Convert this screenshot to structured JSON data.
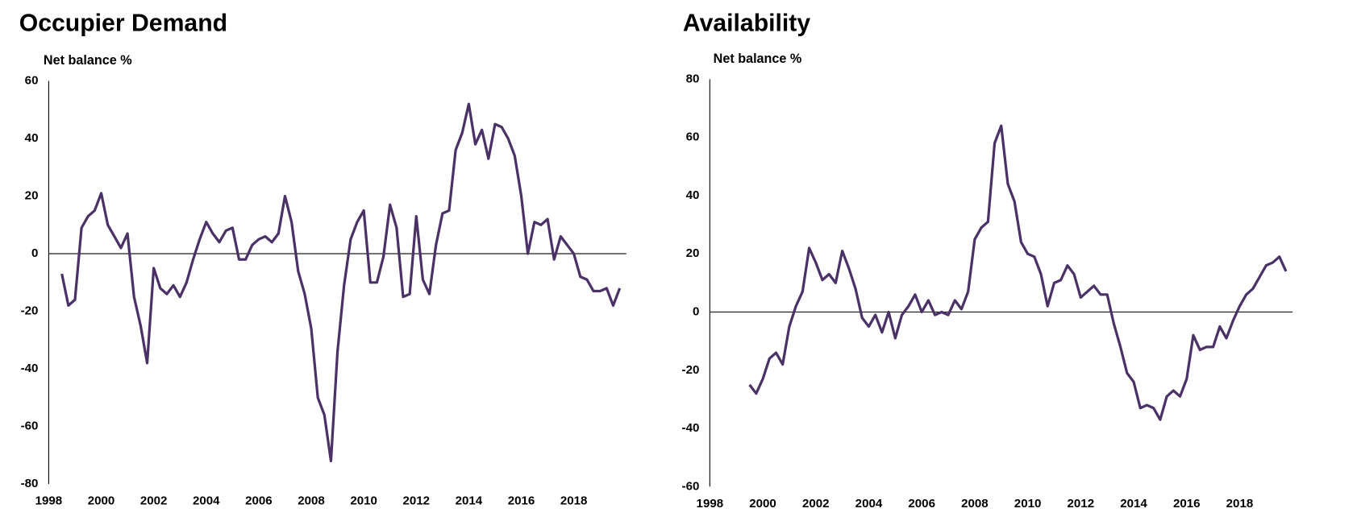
{
  "chart_data": [
    {
      "type": "line",
      "title": "Occupier Demand",
      "y_axis_label": "Net balance %",
      "x": [
        1998.5,
        1998.75,
        1999,
        1999.25,
        1999.5,
        1999.75,
        2000,
        2000.25,
        2000.5,
        2000.75,
        2001,
        2001.25,
        2001.5,
        2001.75,
        2002,
        2002.25,
        2002.5,
        2002.75,
        2003,
        2003.25,
        2003.5,
        2003.75,
        2004,
        2004.25,
        2004.5,
        2004.75,
        2005,
        2005.25,
        2005.5,
        2005.75,
        2006,
        2006.25,
        2006.5,
        2006.75,
        2007,
        2007.25,
        2007.5,
        2007.75,
        2008,
        2008.25,
        2008.5,
        2008.75,
        2009,
        2009.25,
        2009.5,
        2009.75,
        2010,
        2010.25,
        2010.5,
        2010.75,
        2011,
        2011.25,
        2011.5,
        2011.75,
        2012,
        2012.25,
        2012.5,
        2012.75,
        2013,
        2013.25,
        2013.5,
        2013.75,
        2014,
        2014.25,
        2014.5,
        2014.75,
        2015,
        2015.25,
        2015.5,
        2015.75,
        2016,
        2016.25,
        2016.5,
        2016.75,
        2017,
        2017.25,
        2017.5,
        2017.75,
        2018,
        2018.25,
        2018.5,
        2018.75,
        2019,
        2019.25,
        2019.5,
        2019.75
      ],
      "series": [
        {
          "name": "Occupier Demand",
          "color": "#4a3266",
          "values": [
            -7,
            -18,
            -16,
            9,
            13,
            15,
            21,
            10,
            6,
            2,
            7,
            -15,
            -25,
            -38,
            -5,
            -12,
            -14,
            -11,
            -15,
            -10,
            -2,
            5,
            11,
            7,
            4,
            8,
            9,
            -2,
            -2,
            3,
            5,
            6,
            4,
            7,
            20,
            11,
            -6,
            -14,
            -26,
            -50,
            -56,
            -72,
            -34,
            -11,
            5,
            11,
            15,
            -10,
            -10,
            -1,
            17,
            9,
            -15,
            -14,
            13,
            -9,
            -14,
            3,
            14,
            15,
            36,
            42,
            52,
            38,
            43,
            33,
            45,
            44,
            40,
            34,
            20,
            0,
            11,
            10,
            12,
            -2,
            6,
            3,
            0,
            -8,
            -9,
            -13,
            -13,
            -12,
            -18,
            -12
          ]
        }
      ],
      "xlim": [
        1998,
        2020
      ],
      "xticks": [
        1998,
        2000,
        2002,
        2004,
        2006,
        2008,
        2010,
        2012,
        2014,
        2016,
        2018
      ],
      "ylim": [
        -80,
        60
      ],
      "yticks": [
        -80,
        -60,
        -40,
        -20,
        0,
        20,
        40,
        60
      ]
    },
    {
      "type": "line",
      "title": "Availability",
      "y_axis_label": "Net balance %",
      "x": [
        1999.5,
        1999.75,
        2000,
        2000.25,
        2000.5,
        2000.75,
        2001,
        2001.25,
        2001.5,
        2001.75,
        2002,
        2002.25,
        2002.5,
        2002.75,
        2003,
        2003.25,
        2003.5,
        2003.75,
        2004,
        2004.25,
        2004.5,
        2004.75,
        2005,
        2005.25,
        2005.5,
        2005.75,
        2006,
        2006.25,
        2006.5,
        2006.75,
        2007,
        2007.25,
        2007.5,
        2007.75,
        2008,
        2008.25,
        2008.5,
        2008.75,
        2009,
        2009.25,
        2009.5,
        2009.75,
        2010,
        2010.25,
        2010.5,
        2010.75,
        2011,
        2011.25,
        2011.5,
        2011.75,
        2012,
        2012.25,
        2012.5,
        2012.75,
        2013,
        2013.25,
        2013.5,
        2013.75,
        2014,
        2014.25,
        2014.5,
        2014.75,
        2015,
        2015.25,
        2015.5,
        2015.75,
        2016,
        2016.25,
        2016.5,
        2016.75,
        2017,
        2017.25,
        2017.5,
        2017.75,
        2018,
        2018.25,
        2018.5,
        2018.75,
        2019,
        2019.25,
        2019.5,
        2019.75
      ],
      "series": [
        {
          "name": "Availability",
          "color": "#4a3266",
          "values": [
            -25,
            -28,
            -23,
            -16,
            -14,
            -18,
            -5,
            2,
            7,
            22,
            17,
            11,
            13,
            10,
            21,
            15,
            8,
            -2,
            -5,
            -1,
            -7,
            0,
            -9,
            -1,
            2,
            6,
            0,
            4,
            -1,
            0,
            -1,
            4,
            1,
            7,
            25,
            29,
            31,
            58,
            64,
            44,
            38,
            24,
            20,
            19,
            13,
            2,
            10,
            11,
            16,
            13,
            5,
            7,
            9,
            6,
            6,
            -4,
            -12,
            -21,
            -24,
            -33,
            -32,
            -33,
            -37,
            -29,
            -27,
            -29,
            -23,
            -8,
            -13,
            -12,
            -12,
            -5,
            -9,
            -3,
            2,
            6,
            8,
            12,
            16,
            17,
            19,
            14
          ]
        }
      ],
      "xlim": [
        1998,
        2020
      ],
      "xticks": [
        1998,
        2000,
        2002,
        2004,
        2006,
        2008,
        2010,
        2012,
        2014,
        2016,
        2018
      ],
      "ylim": [
        -60,
        80
      ],
      "yticks": [
        -60,
        -40,
        -20,
        0,
        20,
        40,
        60,
        80
      ]
    }
  ]
}
